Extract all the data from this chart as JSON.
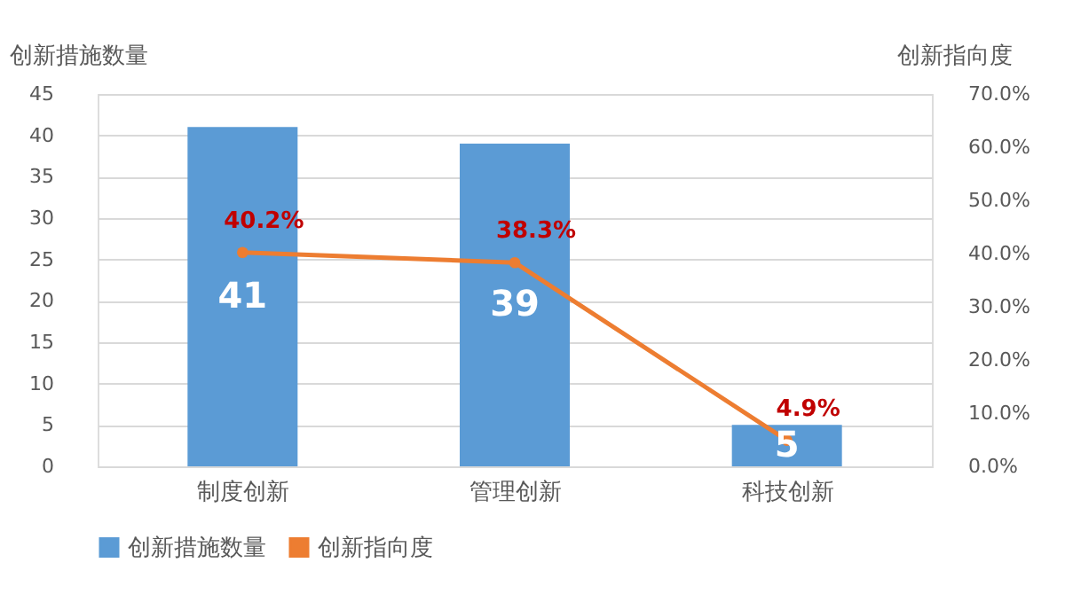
{
  "chart_data": {
    "type": "bar",
    "ylabel": "创新措施数量",
    "y2label": "创新指向度",
    "categories": [
      "制度创新",
      "管理创新",
      "科技创新"
    ],
    "series": [
      {
        "name": "创新措施数量",
        "color": "#5b9bd5",
        "values": [
          41,
          39,
          5
        ],
        "value_labels": [
          "41",
          "39",
          "5"
        ]
      },
      {
        "name": "创新指向度",
        "type": "line",
        "axis": "y2",
        "color": "#ed7d31",
        "marker": "circle",
        "values": [
          40.2,
          38.3,
          4.9
        ],
        "value_labels": [
          "40.2%",
          "38.3%",
          "4.9%"
        ]
      }
    ],
    "ylim": [
      0,
      45
    ],
    "yticks": [
      0,
      5,
      10,
      15,
      20,
      25,
      30,
      35,
      40,
      45
    ],
    "y2lim": [
      0,
      70
    ],
    "y2ticks": [
      {
        "value": 0,
        "label": "0.0%"
      },
      {
        "value": 10,
        "label": "10.0%"
      },
      {
        "value": 20,
        "label": "20.0%"
      },
      {
        "value": 30,
        "label": "30.0%"
      },
      {
        "value": 40,
        "label": "40.0%"
      },
      {
        "value": 50,
        "label": "50.0%"
      },
      {
        "value": 60,
        "label": "60.0%"
      },
      {
        "value": 70,
        "label": "70.0%"
      }
    ],
    "grid": "y",
    "legend": "bottom"
  }
}
